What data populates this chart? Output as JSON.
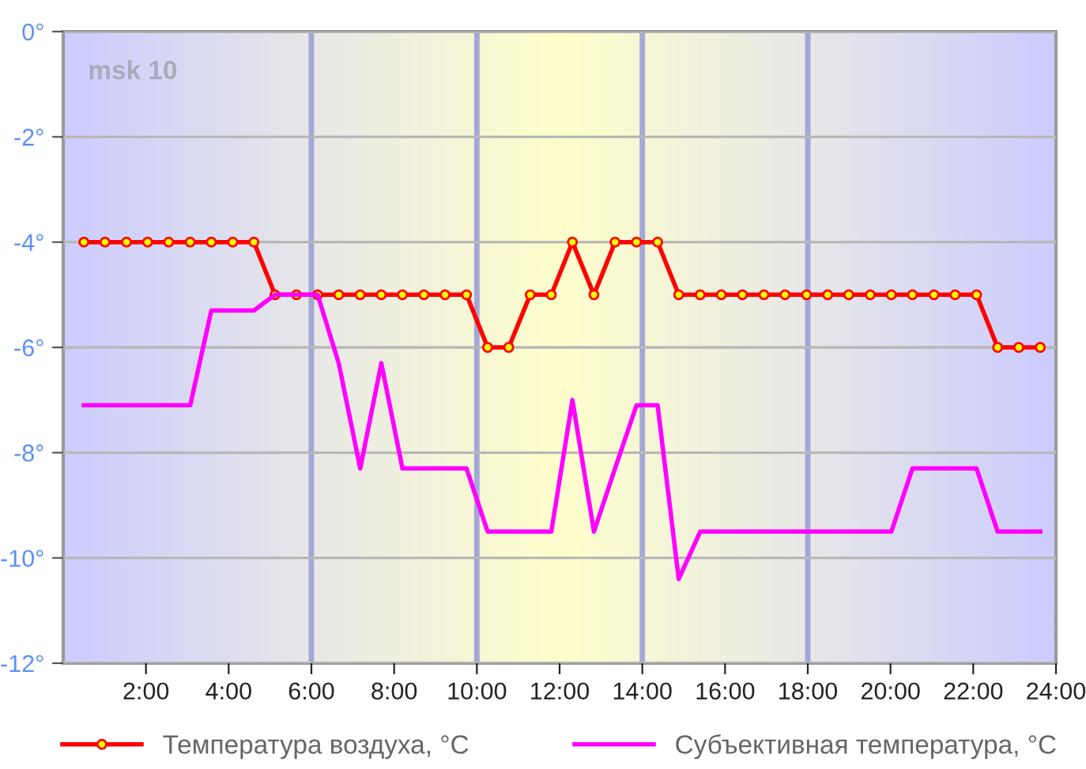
{
  "chart_data": {
    "type": "line",
    "xlim": [
      0,
      24
    ],
    "xticks": [
      {
        "value": 2,
        "label": "2:00"
      },
      {
        "value": 4,
        "label": "4:00"
      },
      {
        "value": 6,
        "label": "6:00"
      },
      {
        "value": 8,
        "label": "8:00"
      },
      {
        "value": 10,
        "label": "10:00"
      },
      {
        "value": 12,
        "label": "12:00"
      },
      {
        "value": 14,
        "label": "14:00"
      },
      {
        "value": 16,
        "label": "16:00"
      },
      {
        "value": 18,
        "label": "18:00"
      },
      {
        "value": 20,
        "label": "20:00"
      },
      {
        "value": 22,
        "label": "22:00"
      },
      {
        "value": 24,
        "label": "24:00"
      }
    ],
    "ylim": [
      -12,
      0
    ],
    "yticks": [
      {
        "value": 0,
        "label": "0°"
      },
      {
        "value": -2,
        "label": "-2°"
      },
      {
        "value": -4,
        "label": "-4°"
      },
      {
        "value": -6,
        "label": "-6°"
      },
      {
        "value": -8,
        "label": "-8°"
      },
      {
        "value": -10,
        "label": "-10°"
      },
      {
        "value": -12,
        "label": "-12°"
      }
    ],
    "grid": "y",
    "legend": "bottom",
    "annotations": [
      "msk 10"
    ],
    "ref_lines": [
      {
        "axis": "x",
        "value": 6,
        "label": null,
        "color": "#a3a8d8"
      },
      {
        "axis": "x",
        "value": 10,
        "label": null,
        "color": "#a3a8d8"
      },
      {
        "axis": "x",
        "value": 14,
        "label": null,
        "color": "#a3a8d8"
      },
      {
        "axis": "x",
        "value": 18,
        "label": null,
        "color": "#a3a8d8"
      }
    ],
    "x": [
      0.5,
      1.01,
      1.53,
      2.04,
      2.55,
      3.07,
      3.58,
      4.1,
      4.61,
      5.12,
      5.64,
      6.15,
      6.66,
      7.18,
      7.69,
      8.2,
      8.72,
      9.23,
      9.75,
      10.26,
      10.77,
      11.29,
      11.8,
      12.31,
      12.83,
      13.34,
      13.86,
      14.37,
      14.88,
      15.4,
      15.91,
      16.42,
      16.94,
      17.45,
      17.97,
      18.48,
      18.99,
      19.51,
      20.02,
      20.53,
      21.05,
      21.56,
      22.08,
      22.59,
      23.1,
      23.62
    ],
    "series": [
      {
        "name": "Температура воздуха, °C",
        "color": "#ff0000",
        "marker": "circle",
        "values": [
          -4,
          -4,
          -4,
          -4,
          -4,
          -4,
          -4,
          -4,
          -4,
          -5,
          -5,
          -5,
          -5,
          -5,
          -5,
          -5,
          -5,
          -5,
          -5,
          -6,
          -6,
          -5,
          -5,
          -4,
          -5,
          -4,
          -4,
          -4,
          -5,
          -5,
          -5,
          -5,
          -5,
          -5,
          -5,
          -5,
          -5,
          -5,
          -5,
          -5,
          -5,
          -5,
          -5,
          -6,
          -6,
          -6
        ]
      },
      {
        "name": "Субъективная температура, °C",
        "color": "#ff00ff",
        "marker": "none",
        "values": [
          -7.1,
          -7.1,
          -7.1,
          -7.1,
          -7.1,
          -7.1,
          -5.3,
          -5.3,
          -5.3,
          -5,
          -5,
          -5,
          -6.3,
          -8.3,
          -6.3,
          -8.3,
          -8.3,
          -8.3,
          -8.3,
          -9.5,
          -9.5,
          -9.5,
          -9.5,
          -7,
          -9.5,
          -8.3,
          -7.1,
          -7.1,
          -10.4,
          -9.5,
          -9.5,
          -9.5,
          -9.5,
          -9.5,
          -9.5,
          -9.5,
          -9.5,
          -9.5,
          -9.5,
          -8.3,
          -8.3,
          -8.3,
          -8.3,
          -9.5,
          -9.5,
          -9.5
        ]
      }
    ]
  }
}
